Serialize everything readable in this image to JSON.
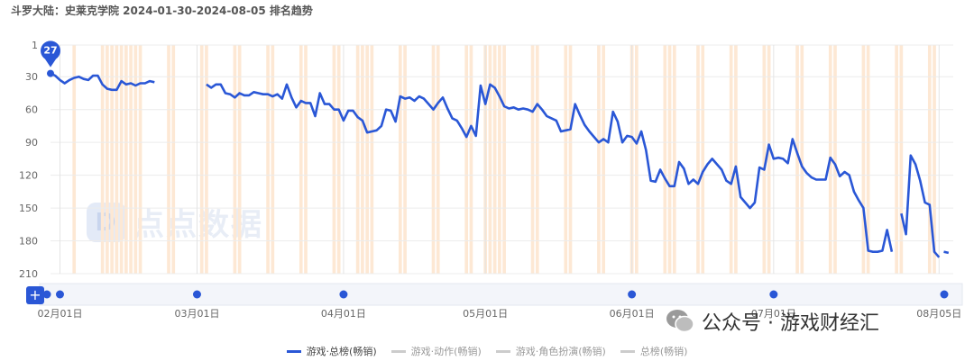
{
  "header": {
    "title": "斗罗大陆：史莱克学院 2024-01-30-2024-08-05 排名趋势"
  },
  "watermark": {
    "text": "点点数据"
  },
  "overlay": {
    "wechat_text": "公众号 · 游戏财经汇"
  },
  "controls": {
    "add_label": "+"
  },
  "marker": {
    "label": "27"
  },
  "legend": [
    {
      "label": "游戏·总榜(畅销)",
      "active": true
    },
    {
      "label": "游戏·动作(畅销)",
      "active": false
    },
    {
      "label": "游戏·角色扮演(畅销)",
      "active": false
    },
    {
      "label": "总榜(畅销)",
      "active": false
    }
  ],
  "colors": {
    "line": "#2a57d6",
    "band": "#fde8d4"
  },
  "chart_data": {
    "type": "line",
    "title": "斗罗大陆：史莱克学院 2024-01-30-2024-08-05 排名趋势",
    "y_reversed": true,
    "ylim": [
      1,
      210
    ],
    "yticks": [
      1,
      30,
      60,
      90,
      120,
      150,
      180,
      210
    ],
    "x_range": [
      "2024-01-30",
      "2024-08-05"
    ],
    "xticks": [
      {
        "date": "2024-02-01",
        "label": "02月01日"
      },
      {
        "date": "2024-03-01",
        "label": "03月01日"
      },
      {
        "date": "2024-04-01",
        "label": "04月01日"
      },
      {
        "date": "2024-05-01",
        "label": "05月01日"
      },
      {
        "date": "2024-06-01",
        "label": "06月01日"
      },
      {
        "date": "2024-07-01",
        "label": "07月01日"
      },
      {
        "date": "2024-08-05",
        "label": "08月05日"
      }
    ],
    "highlight_bands": [
      "2024-02-04",
      "2024-02-10",
      "2024-02-11",
      "2024-02-12",
      "2024-02-13",
      "2024-02-14",
      "2024-02-15",
      "2024-02-16",
      "2024-02-17",
      "2024-02-18",
      "2024-02-24",
      "2024-02-25",
      "2024-03-02",
      "2024-03-03",
      "2024-03-09",
      "2024-03-10",
      "2024-03-16",
      "2024-03-17",
      "2024-03-23",
      "2024-03-24",
      "2024-03-30",
      "2024-03-31",
      "2024-04-04",
      "2024-04-05",
      "2024-04-06",
      "2024-04-07",
      "2024-04-13",
      "2024-04-14",
      "2024-04-20",
      "2024-04-21",
      "2024-04-27",
      "2024-04-28",
      "2024-05-01",
      "2024-05-02",
      "2024-05-03",
      "2024-05-04",
      "2024-05-05",
      "2024-05-11",
      "2024-05-12",
      "2024-05-18",
      "2024-05-19",
      "2024-05-25",
      "2024-05-26",
      "2024-06-01",
      "2024-06-02",
      "2024-06-08",
      "2024-06-09",
      "2024-06-10",
      "2024-06-15",
      "2024-06-16",
      "2024-06-22",
      "2024-06-23",
      "2024-06-29",
      "2024-06-30",
      "2024-07-06",
      "2024-07-07",
      "2024-07-13",
      "2024-07-14",
      "2024-07-20",
      "2024-07-21",
      "2024-07-27",
      "2024-07-28",
      "2024-08-03",
      "2024-08-04"
    ],
    "series": [
      {
        "name": "游戏·总榜(畅销)",
        "segments": [
          [
            [
              "2024-01-30",
              27
            ],
            [
              "2024-01-31",
              29
            ],
            [
              "2024-02-01",
              33
            ],
            [
              "2024-02-02",
              36
            ],
            [
              "2024-02-03",
              33
            ],
            [
              "2024-02-04",
              31
            ],
            [
              "2024-02-05",
              30
            ],
            [
              "2024-02-06",
              32
            ],
            [
              "2024-02-07",
              33
            ],
            [
              "2024-02-08",
              29
            ],
            [
              "2024-02-09",
              29
            ],
            [
              "2024-02-10",
              37
            ],
            [
              "2024-02-11",
              41
            ],
            [
              "2024-02-12",
              42
            ],
            [
              "2024-02-13",
              42
            ],
            [
              "2024-02-14",
              34
            ],
            [
              "2024-02-15",
              37
            ],
            [
              "2024-02-16",
              36
            ],
            [
              "2024-02-17",
              38
            ],
            [
              "2024-02-18",
              36
            ],
            [
              "2024-02-19",
              36
            ],
            [
              "2024-02-20",
              34
            ],
            [
              "2024-02-21",
              35
            ]
          ],
          [
            [
              "2024-03-03",
              37
            ],
            [
              "2024-03-04",
              40
            ],
            [
              "2024-03-05",
              37
            ],
            [
              "2024-03-06",
              37
            ],
            [
              "2024-03-07",
              45
            ],
            [
              "2024-03-08",
              46
            ],
            [
              "2024-03-09",
              49
            ],
            [
              "2024-03-10",
              45
            ],
            [
              "2024-03-11",
              47
            ],
            [
              "2024-03-12",
              47
            ],
            [
              "2024-03-13",
              44
            ],
            [
              "2024-03-14",
              45
            ],
            [
              "2024-03-15",
              46
            ],
            [
              "2024-03-16",
              46
            ],
            [
              "2024-03-17",
              48
            ],
            [
              "2024-03-18",
              46
            ],
            [
              "2024-03-19",
              50
            ],
            [
              "2024-03-20",
              37
            ],
            [
              "2024-03-21",
              49
            ],
            [
              "2024-03-22",
              58
            ],
            [
              "2024-03-23",
              52
            ],
            [
              "2024-03-24",
              54
            ],
            [
              "2024-03-25",
              54
            ],
            [
              "2024-03-26",
              66
            ],
            [
              "2024-03-27",
              45
            ],
            [
              "2024-03-28",
              55
            ],
            [
              "2024-03-29",
              55
            ],
            [
              "2024-03-30",
              60
            ],
            [
              "2024-03-31",
              60
            ],
            [
              "2024-04-01",
              70
            ],
            [
              "2024-04-02",
              61
            ],
            [
              "2024-04-03",
              61
            ],
            [
              "2024-04-04",
              67
            ],
            [
              "2024-04-05",
              70
            ],
            [
              "2024-04-06",
              81
            ],
            [
              "2024-04-07",
              80
            ],
            [
              "2024-04-08",
              79
            ],
            [
              "2024-04-09",
              75
            ],
            [
              "2024-04-10",
              60
            ],
            [
              "2024-04-11",
              61
            ],
            [
              "2024-04-12",
              71
            ],
            [
              "2024-04-13",
              48
            ],
            [
              "2024-04-14",
              50
            ],
            [
              "2024-04-15",
              49
            ],
            [
              "2024-04-16",
              52
            ],
            [
              "2024-04-17",
              48
            ],
            [
              "2024-04-18",
              50
            ],
            [
              "2024-04-19",
              55
            ],
            [
              "2024-04-20",
              60
            ],
            [
              "2024-04-21",
              54
            ],
            [
              "2024-04-22",
              49
            ],
            [
              "2024-04-23",
              59
            ],
            [
              "2024-04-24",
              68
            ],
            [
              "2024-04-25",
              70
            ],
            [
              "2024-04-26",
              77
            ],
            [
              "2024-04-27",
              85
            ],
            [
              "2024-04-28",
              75
            ],
            [
              "2024-04-29",
              84
            ],
            [
              "2024-04-30",
              38
            ],
            [
              "2024-05-01",
              55
            ],
            [
              "2024-05-02",
              37
            ],
            [
              "2024-05-03",
              40
            ],
            [
              "2024-05-04",
              48
            ],
            [
              "2024-05-05",
              57
            ],
            [
              "2024-05-06",
              59
            ],
            [
              "2024-05-07",
              58
            ],
            [
              "2024-05-08",
              60
            ],
            [
              "2024-05-09",
              59
            ],
            [
              "2024-05-10",
              60
            ],
            [
              "2024-05-11",
              62
            ],
            [
              "2024-05-12",
              55
            ],
            [
              "2024-05-13",
              60
            ],
            [
              "2024-05-14",
              66
            ],
            [
              "2024-05-15",
              68
            ],
            [
              "2024-05-16",
              70
            ],
            [
              "2024-05-17",
              80
            ],
            [
              "2024-05-18",
              79
            ],
            [
              "2024-05-19",
              78
            ],
            [
              "2024-05-20",
              55
            ],
            [
              "2024-05-21",
              65
            ],
            [
              "2024-05-22",
              74
            ],
            [
              "2024-05-23",
              80
            ],
            [
              "2024-05-24",
              85
            ],
            [
              "2024-05-25",
              90
            ],
            [
              "2024-05-26",
              87
            ],
            [
              "2024-05-27",
              90
            ],
            [
              "2024-05-28",
              62
            ],
            [
              "2024-05-29",
              71
            ],
            [
              "2024-05-30",
              90
            ],
            [
              "2024-05-31",
              84
            ],
            [
              "2024-06-01",
              85
            ],
            [
              "2024-06-02",
              91
            ],
            [
              "2024-06-03",
              80
            ],
            [
              "2024-06-04",
              97
            ],
            [
              "2024-06-05",
              125
            ],
            [
              "2024-06-06",
              126
            ],
            [
              "2024-06-07",
              115
            ],
            [
              "2024-06-08",
              123
            ],
            [
              "2024-06-09",
              130
            ],
            [
              "2024-06-10",
              130
            ],
            [
              "2024-06-11",
              108
            ],
            [
              "2024-06-12",
              114
            ],
            [
              "2024-06-13",
              128
            ],
            [
              "2024-06-14",
              124
            ],
            [
              "2024-06-15",
              128
            ],
            [
              "2024-06-16",
              117
            ],
            [
              "2024-06-17",
              110
            ],
            [
              "2024-06-18",
              105
            ],
            [
              "2024-06-19",
              110
            ],
            [
              "2024-06-20",
              115
            ],
            [
              "2024-06-21",
              125
            ],
            [
              "2024-06-22",
              128
            ],
            [
              "2024-06-23",
              112
            ],
            [
              "2024-06-24",
              140
            ],
            [
              "2024-06-25",
              145
            ],
            [
              "2024-06-26",
              150
            ],
            [
              "2024-06-27",
              145
            ],
            [
              "2024-06-28",
              113
            ],
            [
              "2024-06-29",
              115
            ],
            [
              "2024-06-30",
              92
            ],
            [
              "2024-07-01",
              105
            ],
            [
              "2024-07-02",
              104
            ],
            [
              "2024-07-03",
              105
            ],
            [
              "2024-07-04",
              109
            ],
            [
              "2024-07-05",
              87
            ],
            [
              "2024-07-06",
              100
            ],
            [
              "2024-07-07",
              112
            ],
            [
              "2024-07-08",
              118
            ],
            [
              "2024-07-09",
              122
            ],
            [
              "2024-07-10",
              124
            ],
            [
              "2024-07-11",
              124
            ],
            [
              "2024-07-12",
              124
            ],
            [
              "2024-07-13",
              104
            ],
            [
              "2024-07-14",
              110
            ],
            [
              "2024-07-15",
              121
            ],
            [
              "2024-07-16",
              117
            ],
            [
              "2024-07-17",
              120
            ],
            [
              "2024-07-18",
              135
            ],
            [
              "2024-07-19",
              143
            ],
            [
              "2024-07-20",
              150
            ],
            [
              "2024-07-21",
              189
            ],
            [
              "2024-07-22",
              190
            ],
            [
              "2024-07-23",
              190
            ],
            [
              "2024-07-24",
              189
            ],
            [
              "2024-07-25",
              170
            ],
            [
              "2024-07-26",
              190
            ]
          ],
          [
            [
              "2024-07-28",
              155
            ],
            [
              "2024-07-29",
              174
            ],
            [
              "2024-07-30",
              102
            ],
            [
              "2024-07-31",
              110
            ],
            [
              "2024-08-01",
              125
            ],
            [
              "2024-08-02",
              145
            ],
            [
              "2024-08-03",
              147
            ],
            [
              "2024-08-04",
              190
            ],
            [
              "2024-08-05",
              195
            ]
          ],
          [
            [
              "2024-08-06",
              190
            ],
            [
              "2024-08-07",
              191
            ]
          ]
        ]
      }
    ],
    "nav_markers": [
      "2024-02-01",
      "2024-03-01",
      "2024-04-01",
      "2024-06-01",
      "2024-07-01"
    ]
  }
}
